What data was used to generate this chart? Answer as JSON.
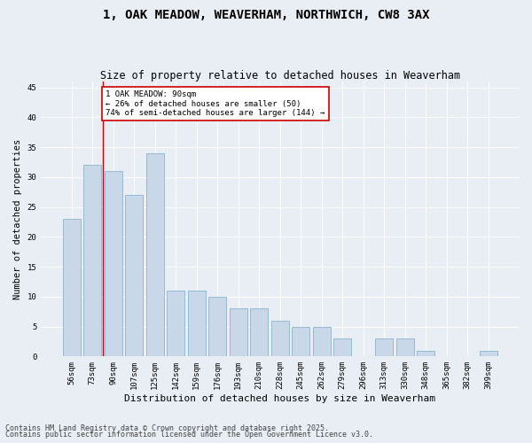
{
  "title": "1, OAK MEADOW, WEAVERHAM, NORTHWICH, CW8 3AX",
  "subtitle": "Size of property relative to detached houses in Weaverham",
  "xlabel": "Distribution of detached houses by size in Weaverham",
  "ylabel": "Number of detached properties",
  "categories": [
    "56sqm",
    "73sqm",
    "90sqm",
    "107sqm",
    "125sqm",
    "142sqm",
    "159sqm",
    "176sqm",
    "193sqm",
    "210sqm",
    "228sqm",
    "245sqm",
    "262sqm",
    "279sqm",
    "296sqm",
    "313sqm",
    "330sqm",
    "348sqm",
    "365sqm",
    "382sqm",
    "399sqm"
  ],
  "values": [
    23,
    32,
    31,
    27,
    34,
    11,
    11,
    10,
    8,
    8,
    6,
    5,
    5,
    3,
    0,
    3,
    3,
    1,
    0,
    0,
    1
  ],
  "bar_color": "#c8d8e8",
  "bar_edge_color": "#7aaac8",
  "highlight_index": 2,
  "highlight_line_color": "#cc0000",
  "annotation_text": "1 OAK MEADOW: 90sqm\n← 26% of detached houses are smaller (50)\n74% of semi-detached houses are larger (144) →",
  "annotation_box_color": "#ffffff",
  "annotation_box_edge": "#cc0000",
  "ylim": [
    0,
    46
  ],
  "yticks": [
    0,
    5,
    10,
    15,
    20,
    25,
    30,
    35,
    40,
    45
  ],
  "footer1": "Contains HM Land Registry data © Crown copyright and database right 2025.",
  "footer2": "Contains public sector information licensed under the Open Government Licence v3.0.",
  "background_color": "#e8eef4",
  "plot_background": "#e8eef4",
  "grid_color": "#ffffff",
  "title_fontsize": 10,
  "subtitle_fontsize": 8.5,
  "tick_fontsize": 6.5,
  "xlabel_fontsize": 8,
  "ylabel_fontsize": 7.5,
  "footer_fontsize": 6
}
